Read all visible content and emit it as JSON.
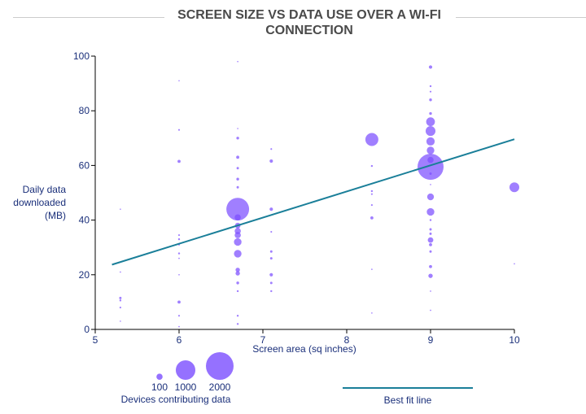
{
  "chart_data": {
    "type": "scatter",
    "title": "SCREEN SIZE VS DATA USE OVER A WI-FI CONNECTION",
    "xlabel": "Screen area (sq inches)",
    "ylabel": [
      "Daily data",
      "downloaded",
      "(MB)"
    ],
    "xlim": [
      5,
      10
    ],
    "ylim": [
      0,
      100
    ],
    "xticks": [
      5,
      6,
      7,
      8,
      9,
      10
    ],
    "yticks": [
      0,
      20,
      40,
      60,
      80,
      100
    ],
    "grid": false,
    "bubble_color": "#7b4dff",
    "line_color": "#1a7f99",
    "size_legend": {
      "title": "Devices contributing data",
      "values": [
        100,
        1000,
        2000
      ]
    },
    "fit_line": {
      "label": "Best fit line",
      "points": [
        [
          5.2,
          23.7
        ],
        [
          10,
          69.6
        ]
      ]
    },
    "points": [
      [
        5.3,
        44,
        2
      ],
      [
        5.3,
        21,
        5
      ],
      [
        5.3,
        11.5,
        15
      ],
      [
        5.3,
        10.6,
        10
      ],
      [
        5.3,
        8,
        8
      ],
      [
        5.3,
        3,
        3
      ],
      [
        6.0,
        91,
        2
      ],
      [
        6.0,
        73,
        8
      ],
      [
        6.0,
        61.5,
        25
      ],
      [
        6.0,
        34.5,
        8
      ],
      [
        6.0,
        33,
        10
      ],
      [
        6.0,
        31,
        8
      ],
      [
        6.0,
        27.8,
        10
      ],
      [
        6.0,
        26,
        5
      ],
      [
        6.0,
        20,
        5
      ],
      [
        6.0,
        10,
        25
      ],
      [
        6.0,
        5,
        8
      ],
      [
        6.0,
        1,
        5
      ],
      [
        6.7,
        98,
        3
      ],
      [
        6.7,
        73.5,
        4
      ],
      [
        6.7,
        70,
        20
      ],
      [
        6.7,
        63,
        25
      ],
      [
        6.7,
        59,
        15
      ],
      [
        6.7,
        55,
        20
      ],
      [
        6.7,
        52,
        15
      ],
      [
        6.7,
        44,
        1350
      ],
      [
        6.7,
        41,
        100
      ],
      [
        6.7,
        38,
        80
      ],
      [
        6.7,
        36,
        100
      ],
      [
        6.7,
        34.5,
        100
      ],
      [
        6.7,
        32,
        150
      ],
      [
        6.7,
        27.7,
        150
      ],
      [
        6.7,
        21.8,
        50
      ],
      [
        6.7,
        20.5,
        50
      ],
      [
        6.7,
        17,
        20
      ],
      [
        6.7,
        14,
        10
      ],
      [
        6.7,
        5,
        10
      ],
      [
        6.7,
        2,
        10
      ],
      [
        7.1,
        66,
        8
      ],
      [
        7.1,
        61.6,
        30
      ],
      [
        7.1,
        44,
        30
      ],
      [
        7.1,
        35.7,
        8
      ],
      [
        7.1,
        28.5,
        15
      ],
      [
        7.1,
        26,
        15
      ],
      [
        7.1,
        20,
        30
      ],
      [
        7.1,
        17,
        15
      ],
      [
        7.1,
        14,
        10
      ],
      [
        8.3,
        69.5,
        440
      ],
      [
        8.3,
        59.8,
        10
      ],
      [
        8.3,
        50.6,
        10
      ],
      [
        8.3,
        49.5,
        8
      ],
      [
        8.3,
        45.5,
        8
      ],
      [
        8.3,
        40.8,
        25
      ],
      [
        8.3,
        22,
        5
      ],
      [
        8.3,
        6,
        3
      ],
      [
        9.0,
        96,
        30
      ],
      [
        9.0,
        89,
        10
      ],
      [
        9.0,
        87,
        8
      ],
      [
        9.0,
        84,
        20
      ],
      [
        9.0,
        79,
        20
      ],
      [
        9.0,
        76,
        200
      ],
      [
        9.0,
        72.6,
        250
      ],
      [
        9.0,
        68.8,
        180
      ],
      [
        9.0,
        65.5,
        150
      ],
      [
        9.0,
        62,
        100
      ],
      [
        9.0,
        59.5,
        1770
      ],
      [
        9.0,
        57,
        15
      ],
      [
        9.0,
        53,
        5
      ],
      [
        9.0,
        48.5,
        120
      ],
      [
        9.0,
        43,
        150
      ],
      [
        9.0,
        40,
        10
      ],
      [
        9.0,
        36.6,
        15
      ],
      [
        9.0,
        35,
        15
      ],
      [
        9.0,
        32.7,
        80
      ],
      [
        9.0,
        31,
        25
      ],
      [
        9.0,
        28.5,
        15
      ],
      [
        9.0,
        23,
        25
      ],
      [
        9.0,
        19.6,
        50
      ],
      [
        9.0,
        14,
        5
      ],
      [
        9.0,
        7,
        5
      ],
      [
        10.0,
        52,
        250
      ],
      [
        10.0,
        24,
        3
      ]
    ]
  }
}
